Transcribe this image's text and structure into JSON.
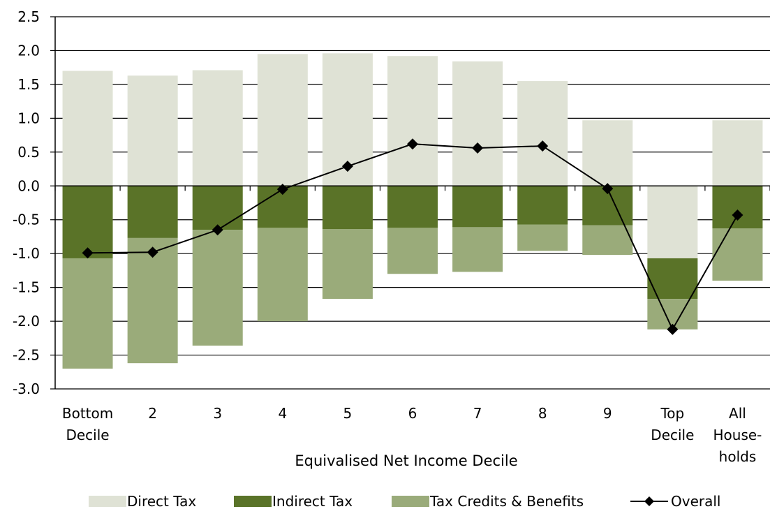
{
  "chart_data": {
    "type": "bar",
    "stacked": true,
    "combo_line_series": "Overall",
    "categories": [
      [
        "Bottom",
        "Decile"
      ],
      [
        "2"
      ],
      [
        "3"
      ],
      [
        "4"
      ],
      [
        "5"
      ],
      [
        "6"
      ],
      [
        "7"
      ],
      [
        "8"
      ],
      [
        "9"
      ],
      [
        "Top",
        "Decile"
      ],
      [
        "All",
        "House-",
        "holds"
      ]
    ],
    "xlabel": "Equivalised Net Income Decile",
    "ylabel": "",
    "ylim": [
      -3.0,
      2.5
    ],
    "yticks": [
      "2.5",
      "2.0",
      "1.5",
      "1.0",
      "0.5",
      "0.0",
      "-0.5",
      "-1.0",
      "-1.5",
      "-2.0",
      "-2.5",
      "-3.0"
    ],
    "grid": "horizontal",
    "legend_position": "bottom",
    "series": [
      {
        "name": "Direct Tax",
        "kind": "bar",
        "color": "#dfe2d5",
        "values": [
          1.7,
          1.63,
          1.71,
          1.95,
          1.96,
          1.92,
          1.84,
          1.55,
          0.97,
          -1.07,
          0.97
        ]
      },
      {
        "name": "Indirect Tax",
        "kind": "bar",
        "color": "#5a7328",
        "values": [
          -1.07,
          -0.77,
          -0.65,
          -0.62,
          -0.64,
          -0.62,
          -0.61,
          -0.57,
          -0.58,
          -0.6,
          -0.63
        ]
      },
      {
        "name": "Tax Credits & Benefits",
        "kind": "bar",
        "color": "#9aab7a",
        "values": [
          -1.63,
          -1.85,
          -1.71,
          -1.38,
          -1.03,
          -0.68,
          -0.66,
          -0.39,
          -0.44,
          -0.45,
          -0.77
        ]
      },
      {
        "name": "Overall",
        "kind": "line",
        "color": "#000000",
        "values": [
          -0.99,
          -0.98,
          -0.65,
          -0.05,
          0.29,
          0.62,
          0.56,
          0.59,
          -0.04,
          -2.12,
          -0.43
        ]
      }
    ]
  }
}
